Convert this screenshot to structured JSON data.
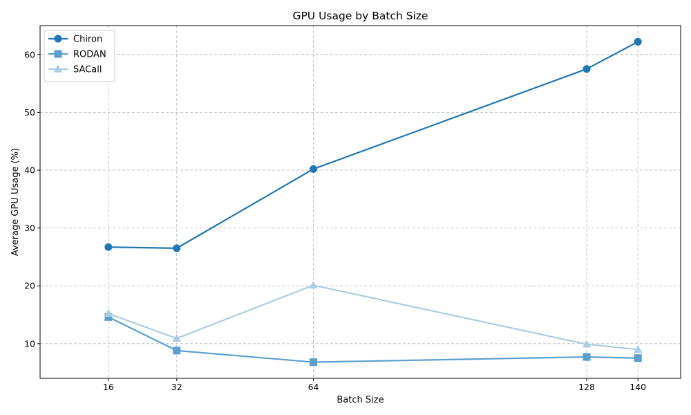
{
  "chart_data": {
    "type": "line",
    "title": "GPU Usage by Batch Size",
    "xlabel": "Batch Size",
    "ylabel": "Average GPU Usage (%)",
    "x": [
      16,
      32,
      64,
      128,
      140
    ],
    "x_ticks": [
      "16",
      "32",
      "64",
      "128",
      "140"
    ],
    "xlim": [
      0,
      150
    ],
    "ylim": [
      4,
      65
    ],
    "y_ticks": [
      10,
      20,
      30,
      40,
      50,
      60
    ],
    "grid": true,
    "grid_style": "dashed",
    "legend_position": "top-left",
    "series": [
      {
        "name": "Chiron",
        "values": [
          26.7,
          26.5,
          40.2,
          57.5,
          62.2
        ],
        "color": "#1f77b4",
        "marker": "circle"
      },
      {
        "name": "RODAN",
        "values": [
          14.6,
          8.8,
          6.8,
          7.7,
          7.5
        ],
        "color": "#5a9fcf",
        "marker": "square"
      },
      {
        "name": "SACall",
        "values": [
          15.2,
          10.9,
          20.1,
          9.9,
          9.0
        ],
        "color": "#aacde4",
        "marker": "triangle"
      }
    ]
  }
}
